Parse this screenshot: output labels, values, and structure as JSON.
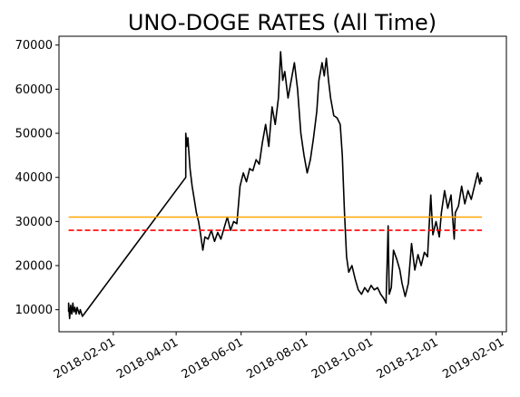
{
  "chart_data": {
    "type": "line",
    "title": "UNO-DOGE RATES (All Time)",
    "xlabel": "",
    "ylabel": "",
    "x_range": [
      "2017-12-12",
      "2019-02-05"
    ],
    "ylim": [
      5000,
      72000
    ],
    "grid": false,
    "legend": "none",
    "y_ticks": [
      10000,
      20000,
      30000,
      40000,
      50000,
      60000,
      70000
    ],
    "x_ticks": [
      "2018-02-01",
      "2018-04-01",
      "2018-06-01",
      "2018-08-01",
      "2018-10-01",
      "2018-12-01",
      "2019-02-01"
    ],
    "reference_lines": [
      {
        "style": "solid",
        "color": "#ffa500",
        "value": 31000
      },
      {
        "style": "dashed",
        "color": "#ff0000",
        "value": 28000
      }
    ],
    "series": [
      {
        "color": "#000000",
        "points": [
          [
            "2017-12-21",
            9500
          ],
          [
            "2017-12-21",
            11500
          ],
          [
            "2017-12-22",
            8000
          ],
          [
            "2017-12-23",
            11000
          ],
          [
            "2017-12-24",
            9000
          ],
          [
            "2017-12-25",
            11500
          ],
          [
            "2017-12-26",
            9500
          ],
          [
            "2017-12-27",
            10500
          ],
          [
            "2017-12-28",
            9000
          ],
          [
            "2017-12-29",
            10500
          ],
          [
            "2017-12-31",
            9000
          ],
          [
            "2018-01-01",
            10000
          ],
          [
            "2018-01-03",
            8500
          ],
          [
            "2018-04-10",
            40000
          ],
          [
            "2018-04-10",
            50000
          ],
          [
            "2018-04-11",
            47000
          ],
          [
            "2018-04-12",
            49000
          ],
          [
            "2018-04-14",
            42000
          ],
          [
            "2018-04-16",
            38000
          ],
          [
            "2018-04-18",
            35000
          ],
          [
            "2018-04-20",
            32000
          ],
          [
            "2018-04-22",
            30000
          ],
          [
            "2018-04-24",
            27000
          ],
          [
            "2018-04-26",
            23500
          ],
          [
            "2018-04-28",
            26500
          ],
          [
            "2018-05-01",
            26000
          ],
          [
            "2018-05-04",
            28000
          ],
          [
            "2018-05-07",
            25500
          ],
          [
            "2018-05-10",
            27500
          ],
          [
            "2018-05-13",
            26000
          ],
          [
            "2018-05-16",
            28500
          ],
          [
            "2018-05-19",
            31000
          ],
          [
            "2018-05-22",
            28000
          ],
          [
            "2018-05-25",
            30000
          ],
          [
            "2018-05-28",
            29500
          ],
          [
            "2018-05-31",
            38000
          ],
          [
            "2018-06-03",
            41000
          ],
          [
            "2018-06-06",
            39000
          ],
          [
            "2018-06-09",
            42000
          ],
          [
            "2018-06-12",
            41500
          ],
          [
            "2018-06-15",
            44000
          ],
          [
            "2018-06-18",
            43000
          ],
          [
            "2018-06-21",
            48000
          ],
          [
            "2018-06-24",
            52000
          ],
          [
            "2018-06-27",
            47000
          ],
          [
            "2018-06-30",
            56000
          ],
          [
            "2018-07-03",
            52000
          ],
          [
            "2018-07-06",
            58000
          ],
          [
            "2018-07-08",
            68500
          ],
          [
            "2018-07-10",
            62000
          ],
          [
            "2018-07-12",
            64000
          ],
          [
            "2018-07-15",
            58000
          ],
          [
            "2018-07-18",
            62000
          ],
          [
            "2018-07-21",
            66000
          ],
          [
            "2018-07-24",
            60000
          ],
          [
            "2018-07-27",
            50000
          ],
          [
            "2018-07-30",
            45000
          ],
          [
            "2018-08-02",
            41000
          ],
          [
            "2018-08-05",
            44000
          ],
          [
            "2018-08-08",
            49000
          ],
          [
            "2018-08-11",
            55000
          ],
          [
            "2018-08-13",
            62000
          ],
          [
            "2018-08-16",
            66000
          ],
          [
            "2018-08-18",
            63000
          ],
          [
            "2018-08-20",
            67000
          ],
          [
            "2018-08-22",
            62000
          ],
          [
            "2018-08-24",
            58000
          ],
          [
            "2018-08-27",
            54000
          ],
          [
            "2018-08-30",
            53500
          ],
          [
            "2018-09-02",
            52000
          ],
          [
            "2018-09-04",
            45000
          ],
          [
            "2018-09-06",
            32000
          ],
          [
            "2018-09-08",
            22000
          ],
          [
            "2018-09-10",
            18500
          ],
          [
            "2018-09-13",
            20000
          ],
          [
            "2018-09-16",
            17000
          ],
          [
            "2018-09-19",
            14500
          ],
          [
            "2018-09-22",
            13500
          ],
          [
            "2018-09-25",
            15000
          ],
          [
            "2018-09-28",
            14000
          ],
          [
            "2018-10-01",
            15500
          ],
          [
            "2018-10-04",
            14500
          ],
          [
            "2018-10-07",
            15000
          ],
          [
            "2018-10-10",
            13500
          ],
          [
            "2018-10-13",
            12500
          ],
          [
            "2018-10-15",
            11500
          ],
          [
            "2018-10-17",
            29000
          ],
          [
            "2018-10-18",
            13500
          ],
          [
            "2018-10-20",
            15000
          ],
          [
            "2018-10-22",
            23500
          ],
          [
            "2018-10-25",
            21500
          ],
          [
            "2018-10-28",
            19000
          ],
          [
            "2018-10-30",
            16000
          ],
          [
            "2018-11-02",
            13000
          ],
          [
            "2018-11-05",
            16000
          ],
          [
            "2018-11-08",
            25000
          ],
          [
            "2018-11-11",
            19000
          ],
          [
            "2018-11-14",
            22500
          ],
          [
            "2018-11-17",
            20000
          ],
          [
            "2018-11-20",
            23000
          ],
          [
            "2018-11-23",
            22000
          ],
          [
            "2018-11-26",
            36000
          ],
          [
            "2018-11-28",
            27000
          ],
          [
            "2018-12-01",
            30000
          ],
          [
            "2018-12-04",
            26500
          ],
          [
            "2018-12-06",
            32000
          ],
          [
            "2018-12-09",
            37000
          ],
          [
            "2018-12-12",
            33000
          ],
          [
            "2018-12-15",
            36000
          ],
          [
            "2018-12-18",
            26000
          ],
          [
            "2018-12-19",
            32000
          ],
          [
            "2018-12-22",
            33500
          ],
          [
            "2018-12-25",
            38000
          ],
          [
            "2018-12-28",
            34000
          ],
          [
            "2018-12-31",
            37000
          ],
          [
            "2019-01-03",
            35000
          ],
          [
            "2019-01-06",
            38000
          ],
          [
            "2019-01-09",
            41000
          ],
          [
            "2019-01-11",
            38500
          ],
          [
            "2019-01-12",
            40000
          ],
          [
            "2019-01-13",
            39000
          ]
        ]
      }
    ]
  }
}
